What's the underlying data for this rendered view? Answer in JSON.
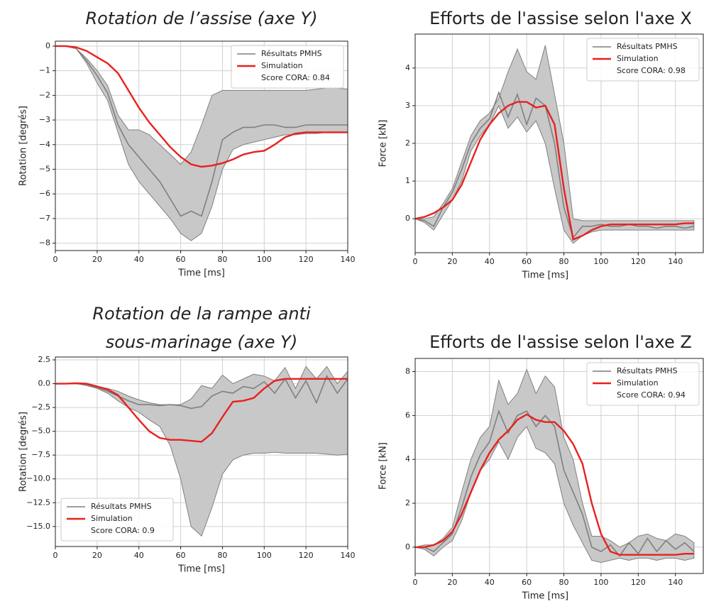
{
  "chart_data": [
    {
      "type": "line",
      "title": [
        "Rotation de l’assise (axe Y)"
      ],
      "title_style": "italic",
      "xlabel": "Time [ms]",
      "ylabel": "Rotation [degrés]",
      "x": [
        0,
        5,
        10,
        15,
        20,
        25,
        30,
        35,
        40,
        45,
        50,
        55,
        60,
        65,
        70,
        75,
        80,
        85,
        90,
        95,
        100,
        105,
        110,
        115,
        120,
        125,
        130,
        135,
        140
      ],
      "series": [
        {
          "name": "Résultats PMHS",
          "color": "#7f7f7f",
          "band_color": "#c8c8c8",
          "values": [
            0,
            0,
            -0.1,
            -0.6,
            -1.2,
            -1.9,
            -3.2,
            -4.0,
            -4.5,
            -5.0,
            -5.5,
            -6.2,
            -6.9,
            -6.7,
            -6.9,
            -5.5,
            -3.8,
            -3.5,
            -3.3,
            -3.3,
            -3.2,
            -3.2,
            -3.3,
            -3.3,
            -3.2,
            -3.2,
            -3.2,
            -3.2,
            -3.2
          ],
          "upper": [
            0,
            0,
            -0.1,
            -0.5,
            -1.0,
            -1.6,
            -2.8,
            -3.4,
            -3.4,
            -3.6,
            -4.0,
            -4.4,
            -4.8,
            -4.3,
            -3.2,
            -2.0,
            -1.8,
            -1.8,
            -1.8,
            -1.8,
            -1.8,
            -1.8,
            -1.8,
            -1.8,
            -1.8,
            -1.75,
            -1.7,
            -1.7,
            -1.75
          ],
          "lower": [
            0,
            0,
            -0.1,
            -0.7,
            -1.5,
            -2.2,
            -3.5,
            -4.8,
            -5.5,
            -6.0,
            -6.5,
            -7.0,
            -7.6,
            -7.9,
            -7.6,
            -6.5,
            -5.0,
            -4.2,
            -4.0,
            -3.9,
            -3.8,
            -3.7,
            -3.6,
            -3.6,
            -3.55,
            -3.55,
            -3.5,
            -3.5,
            -3.5
          ]
        },
        {
          "name": "Simulation",
          "color": "#e8211e",
          "values": [
            0,
            0,
            -0.05,
            -0.2,
            -0.45,
            -0.7,
            -1.1,
            -1.8,
            -2.5,
            -3.1,
            -3.6,
            -4.1,
            -4.5,
            -4.8,
            -4.9,
            -4.85,
            -4.75,
            -4.6,
            -4.4,
            -4.3,
            -4.25,
            -4.0,
            -3.7,
            -3.55,
            -3.5,
            -3.5,
            -3.5,
            -3.5,
            -3.5
          ]
        }
      ],
      "annotation": "Score CORA: 0.84",
      "legend": "upper right",
      "grid": true,
      "xlim": [
        0,
        140
      ],
      "xticks": [
        0,
        20,
        40,
        60,
        80,
        100,
        120,
        140
      ],
      "ylim": [
        -8.3,
        0.2
      ],
      "yticks": [
        {
          "value": -8,
          "label": "−8"
        },
        {
          "value": -7,
          "label": "−7"
        },
        {
          "value": -6,
          "label": "−6"
        },
        {
          "value": -5,
          "label": "−5"
        },
        {
          "value": -4,
          "label": "−4"
        },
        {
          "value": -3,
          "label": "−3"
        },
        {
          "value": -2,
          "label": "−2"
        },
        {
          "value": -1,
          "label": "−1"
        },
        0
      ]
    },
    {
      "type": "line",
      "title": [
        "Efforts de l'assise selon l'axe X"
      ],
      "title_style": "normal",
      "xlabel": "Time [ms]",
      "ylabel": "Force [kN]",
      "x": [
        0,
        5,
        10,
        15,
        20,
        25,
        30,
        35,
        40,
        45,
        50,
        55,
        60,
        65,
        70,
        75,
        80,
        85,
        90,
        95,
        100,
        105,
        110,
        115,
        120,
        125,
        130,
        135,
        140,
        145,
        150
      ],
      "series": [
        {
          "name": "Résultats PMHS",
          "color": "#7f7f7f",
          "band_color": "#c8c8c8",
          "values": [
            0,
            -0.05,
            -0.2,
            0.3,
            0.7,
            1.3,
            2.0,
            2.4,
            2.65,
            3.35,
            2.7,
            3.3,
            2.5,
            3.2,
            3.0,
            2.0,
            0.3,
            -0.5,
            -0.2,
            -0.2,
            -0.15,
            -0.2,
            -0.2,
            -0.15,
            -0.2,
            -0.2,
            -0.25,
            -0.2,
            -0.2,
            -0.25,
            -0.2
          ],
          "upper": [
            0,
            0,
            0.05,
            0.4,
            0.8,
            1.5,
            2.2,
            2.6,
            2.8,
            3.2,
            3.9,
            4.5,
            3.9,
            3.7,
            4.6,
            3.3,
            2.0,
            0.0,
            -0.05,
            -0.05,
            -0.05,
            -0.05,
            -0.05,
            -0.05,
            -0.05,
            -0.05,
            -0.05,
            -0.05,
            -0.05,
            -0.05,
            -0.05
          ],
          "lower": [
            0,
            -0.1,
            -0.3,
            0.1,
            0.5,
            1.0,
            1.8,
            2.2,
            2.5,
            3.0,
            2.4,
            2.7,
            2.3,
            2.6,
            2.0,
            0.8,
            -0.3,
            -0.65,
            -0.45,
            -0.35,
            -0.3,
            -0.3,
            -0.3,
            -0.3,
            -0.3,
            -0.3,
            -0.3,
            -0.3,
            -0.3,
            -0.3,
            -0.3
          ]
        },
        {
          "name": "Simulation",
          "color": "#e8211e",
          "values": [
            0,
            0.05,
            0.15,
            0.3,
            0.5,
            0.9,
            1.5,
            2.1,
            2.5,
            2.8,
            3.0,
            3.1,
            3.1,
            2.95,
            3.0,
            2.5,
            0.8,
            -0.55,
            -0.45,
            -0.3,
            -0.2,
            -0.15,
            -0.15,
            -0.15,
            -0.15,
            -0.15,
            -0.15,
            -0.15,
            -0.15,
            -0.12,
            -0.12
          ]
        }
      ],
      "annotation": "Score CORA: 0.98",
      "legend": "upper right",
      "grid": true,
      "xlim": [
        0,
        155
      ],
      "xticks": [
        0,
        20,
        40,
        60,
        80,
        100,
        120,
        140
      ],
      "ylim": [
        -0.9,
        4.9
      ],
      "yticks": [
        0,
        1,
        2,
        3,
        4
      ]
    },
    {
      "type": "line",
      "title": [
        "Rotation de la rampe anti",
        "sous-marinage (axe Y)"
      ],
      "title_style": "italic",
      "xlabel": "Time [ms]",
      "ylabel": "Rotation [degrés]",
      "x": [
        0,
        5,
        10,
        15,
        20,
        25,
        30,
        35,
        40,
        45,
        50,
        55,
        60,
        65,
        70,
        75,
        80,
        85,
        90,
        95,
        100,
        105,
        110,
        115,
        120,
        125,
        130,
        135,
        140
      ],
      "series": [
        {
          "name": "Résultats PMHS",
          "color": "#7f7f7f",
          "band_color": "#c8c8c8",
          "values": [
            0,
            0,
            0,
            -0.1,
            -0.4,
            -0.8,
            -1.3,
            -1.8,
            -2.2,
            -2.2,
            -2.3,
            -2.2,
            -2.3,
            -2.6,
            -2.4,
            -1.3,
            -0.8,
            -1.0,
            -0.3,
            -0.5,
            0.2,
            -1.0,
            0.5,
            -1.5,
            0.3,
            -2.0,
            0.8,
            -1.0,
            0.5
          ],
          "upper": [
            0,
            0,
            0,
            -0.1,
            -0.3,
            -0.5,
            -0.8,
            -1.3,
            -1.7,
            -2.0,
            -2.2,
            -2.2,
            -2.2,
            -1.6,
            -0.2,
            -0.5,
            0.9,
            0.0,
            0.5,
            1.0,
            0.8,
            0.3,
            1.7,
            -0.5,
            1.8,
            0.5,
            1.8,
            0.0,
            1.3
          ],
          "lower": [
            0,
            0,
            0,
            -0.2,
            -0.5,
            -1.0,
            -1.8,
            -2.5,
            -3.0,
            -3.8,
            -4.5,
            -6.5,
            -10.0,
            -15.0,
            -16.0,
            -13.0,
            -9.5,
            -8.0,
            -7.5,
            -7.3,
            -7.3,
            -7.2,
            -7.3,
            -7.3,
            -7.3,
            -7.3,
            -7.4,
            -7.5,
            -7.4
          ]
        },
        {
          "name": "Simulation",
          "color": "#e8211e",
          "values": [
            0,
            0,
            0.05,
            0,
            -0.3,
            -0.6,
            -1.2,
            -2.5,
            -3.8,
            -5.0,
            -5.7,
            -5.9,
            -5.9,
            -6.0,
            -6.1,
            -5.2,
            -3.5,
            -1.9,
            -1.8,
            -1.5,
            -0.5,
            0.3,
            0.5,
            0.5,
            0.5,
            0.5,
            0.5,
            0.5,
            0.5
          ]
        }
      ],
      "annotation": "Score CORA: 0.9",
      "legend": "lower left",
      "grid": true,
      "xlim": [
        0,
        140
      ],
      "xticks": [
        0,
        20,
        40,
        60,
        80,
        100,
        120,
        140
      ],
      "ylim": [
        -17.1,
        2.8
      ],
      "yticks": [
        {
          "value": -15,
          "label": "−15.0"
        },
        {
          "value": -12.5,
          "label": "−12.5"
        },
        {
          "value": -10,
          "label": "−10.0"
        },
        {
          "value": -7.5,
          "label": "−7.5"
        },
        {
          "value": -5,
          "label": "−5.0"
        },
        {
          "value": -2.5,
          "label": "−2.5"
        },
        {
          "value": 0,
          "label": "0.0"
        },
        2.5
      ]
    },
    {
      "type": "line",
      "title": [
        "Efforts de l'assise selon l'axe Z"
      ],
      "title_style": "normal",
      "xlabel": "Time [ms]",
      "ylabel": "Force [kN]",
      "x": [
        0,
        5,
        10,
        15,
        20,
        25,
        30,
        35,
        40,
        45,
        50,
        55,
        60,
        65,
        70,
        75,
        80,
        85,
        90,
        95,
        100,
        105,
        110,
        115,
        120,
        125,
        130,
        135,
        140,
        145,
        150
      ],
      "series": [
        {
          "name": "Résultats PMHS",
          "color": "#7f7f7f",
          "band_color": "#c8c8c8",
          "values": [
            0,
            0,
            -0.2,
            0.2,
            0.6,
            1.8,
            3.2,
            4.2,
            4.8,
            6.2,
            5.2,
            6.0,
            6.2,
            5.5,
            6.0,
            5.5,
            3.5,
            2.5,
            1.5,
            0.0,
            -0.2,
            0.1,
            -0.4,
            0.2,
            -0.3,
            0.4,
            -0.2,
            0.3,
            -0.1,
            0.2,
            -0.2
          ],
          "upper": [
            0,
            0.1,
            0.1,
            0.4,
            0.9,
            2.5,
            4.0,
            5.0,
            5.5,
            7.6,
            6.5,
            7.0,
            8.1,
            7.0,
            7.8,
            7.3,
            5.0,
            4.0,
            2.0,
            0.5,
            0.5,
            0.3,
            0.0,
            0.2,
            0.5,
            0.6,
            0.4,
            0.3,
            0.6,
            0.5,
            0.2
          ],
          "lower": [
            0,
            -0.1,
            -0.4,
            0.0,
            0.3,
            1.2,
            2.5,
            3.5,
            4.0,
            4.8,
            4.0,
            5.0,
            5.5,
            4.5,
            4.3,
            3.8,
            2.0,
            1.0,
            0.2,
            -0.6,
            -0.7,
            -0.6,
            -0.5,
            -0.6,
            -0.5,
            -0.5,
            -0.6,
            -0.5,
            -0.5,
            -0.6,
            -0.5
          ]
        },
        {
          "name": "Simulation",
          "color": "#e8211e",
          "values": [
            0,
            0,
            0.1,
            0.3,
            0.7,
            1.5,
            2.5,
            3.5,
            4.3,
            4.9,
            5.3,
            5.8,
            6.05,
            5.8,
            5.7,
            5.7,
            5.3,
            4.7,
            3.8,
            2.0,
            0.6,
            -0.2,
            -0.35,
            -0.35,
            -0.35,
            -0.35,
            -0.35,
            -0.35,
            -0.35,
            -0.3,
            -0.3
          ]
        }
      ],
      "annotation": "Score CORA: 0.94",
      "legend": "upper right",
      "grid": true,
      "xlim": [
        0,
        155
      ],
      "xticks": [
        0,
        20,
        40,
        60,
        80,
        100,
        120,
        140
      ],
      "ylim": [
        -1.2,
        8.6
      ],
      "yticks": [
        0,
        2,
        4,
        6,
        8
      ]
    }
  ]
}
